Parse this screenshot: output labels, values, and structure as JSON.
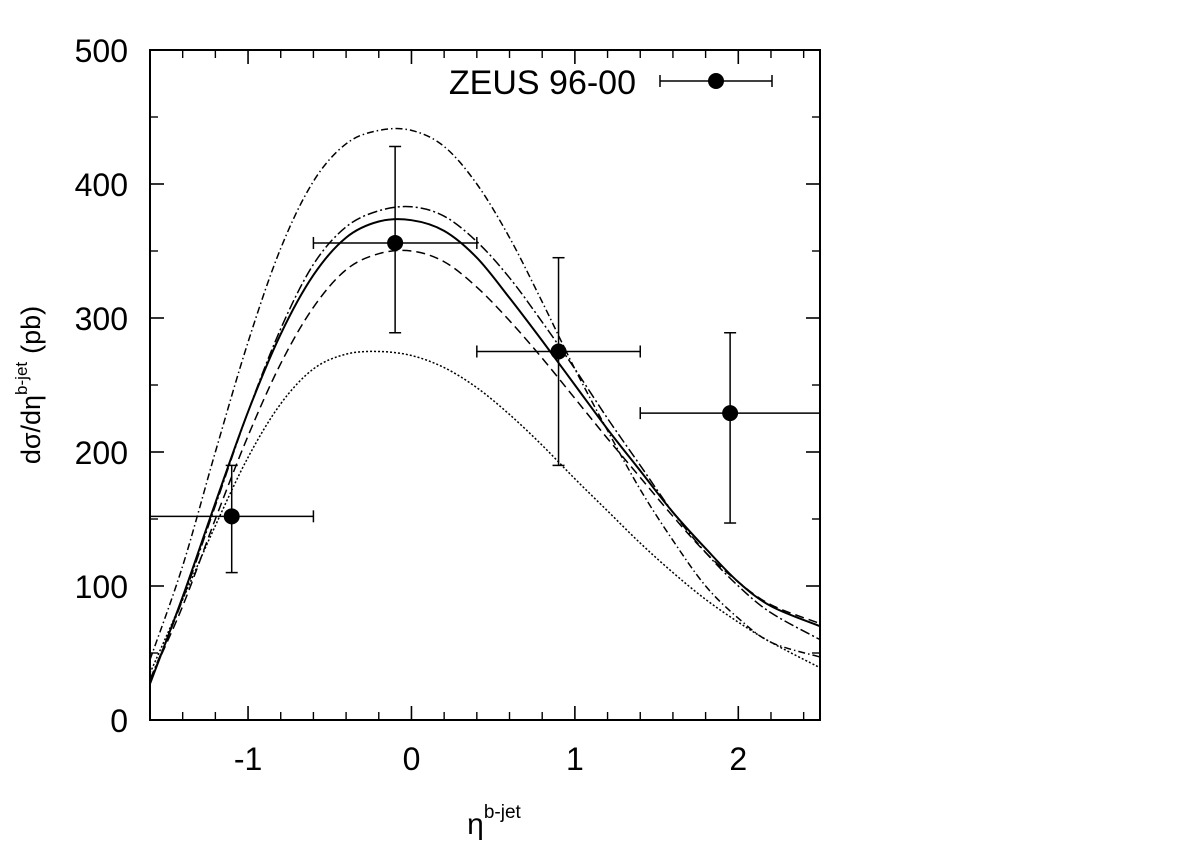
{
  "chart_data": {
    "type": "scatter",
    "title": "",
    "xlabel_main": "η",
    "xlabel_sup": "b-jet",
    "ylabel_main": "dσ/dη",
    "ylabel_sup": "b-jet",
    "ylabel_unit": "(pb)",
    "xlim": [
      -1.6,
      2.5
    ],
    "ylim": [
      0,
      500
    ],
    "x_ticks": [
      -1,
      0,
      1,
      2
    ],
    "x_tick_labels": [
      "-1",
      "0",
      "1",
      "2"
    ],
    "y_ticks": [
      0,
      100,
      200,
      300,
      400,
      500
    ],
    "y_tick_labels": [
      "0",
      "100",
      "200",
      "300",
      "400",
      "500"
    ],
    "grid": false,
    "legend_position": "top-right",
    "legend_label": "ZEUS 96-00",
    "data_series": {
      "name": "ZEUS 96-00",
      "points": [
        {
          "x": -1.1,
          "y": 152,
          "xerr_low": 0.5,
          "xerr_high": 0.5,
          "yerr_low": 42,
          "yerr_high": 38
        },
        {
          "x": -0.1,
          "y": 356,
          "xerr_low": 0.5,
          "xerr_high": 0.5,
          "yerr_low": 67,
          "yerr_high": 72
        },
        {
          "x": 0.9,
          "y": 275,
          "xerr_low": 0.5,
          "xerr_high": 0.5,
          "yerr_low": 85,
          "yerr_high": 70
        },
        {
          "x": 1.95,
          "y": 229,
          "xerr_low": 0.55,
          "xerr_high": 0.55,
          "yerr_low": 82,
          "yerr_high": 60
        }
      ]
    },
    "curves": [
      {
        "style": "solid",
        "x": [
          -1.6,
          -1.4,
          -1.2,
          -1.0,
          -0.8,
          -0.6,
          -0.4,
          -0.2,
          0.0,
          0.2,
          0.4,
          0.6,
          0.8,
          1.0,
          1.2,
          1.4,
          1.6,
          1.8,
          2.0,
          2.2,
          2.5
        ],
        "y": [
          27,
          92,
          162,
          230,
          288,
          332,
          360,
          372,
          373,
          365,
          345,
          315,
          283,
          250,
          217,
          186,
          155,
          128,
          103,
          85,
          70
        ]
      },
      {
        "style": "dashed",
        "x": [
          -1.6,
          -1.4,
          -1.2,
          -1.0,
          -0.8,
          -0.6,
          -0.4,
          -0.2,
          0.0,
          0.2,
          0.4,
          0.6,
          0.8,
          1.0,
          1.2,
          1.4,
          1.6,
          1.8,
          2.0,
          2.2,
          2.5
        ],
        "y": [
          30,
          85,
          150,
          212,
          266,
          308,
          336,
          348,
          350,
          342,
          323,
          298,
          270,
          240,
          210,
          181,
          152,
          125,
          103,
          86,
          72
        ]
      },
      {
        "style": "dash-dot",
        "x": [
          -1.6,
          -1.4,
          -1.2,
          -1.0,
          -0.8,
          -0.6,
          -0.4,
          -0.2,
          0.0,
          0.2,
          0.4,
          0.6,
          0.8,
          1.0,
          1.2,
          1.4,
          1.6,
          1.8,
          2.0,
          2.2,
          2.5
        ],
        "y": [
          30,
          90,
          160,
          230,
          292,
          340,
          368,
          380,
          383,
          376,
          357,
          330,
          297,
          262,
          225,
          190,
          155,
          125,
          100,
          80,
          60
        ]
      },
      {
        "style": "dash-dot-wide",
        "x": [
          -1.6,
          -1.4,
          -1.2,
          -1.0,
          -0.8,
          -0.6,
          -0.4,
          -0.2,
          0.0,
          0.2,
          0.4,
          0.6,
          0.8,
          1.0,
          1.2,
          1.4,
          1.6,
          1.8,
          2.0,
          2.2,
          2.5
        ],
        "y": [
          45,
          115,
          200,
          282,
          352,
          402,
          430,
          440,
          440,
          428,
          400,
          360,
          312,
          262,
          216,
          172,
          134,
          100,
          76,
          58,
          47
        ]
      },
      {
        "style": "dotted",
        "x": [
          -1.6,
          -1.4,
          -1.2,
          -1.0,
          -0.8,
          -0.6,
          -0.4,
          -0.2,
          0.0,
          0.2,
          0.4,
          0.6,
          0.8,
          1.0,
          1.2,
          1.4,
          1.6,
          1.8,
          2.0,
          2.2,
          2.5
        ],
        "y": [
          35,
          90,
          145,
          196,
          236,
          262,
          273,
          275,
          272,
          263,
          248,
          228,
          205,
          180,
          156,
          132,
          110,
          90,
          73,
          58,
          39
        ]
      }
    ]
  }
}
